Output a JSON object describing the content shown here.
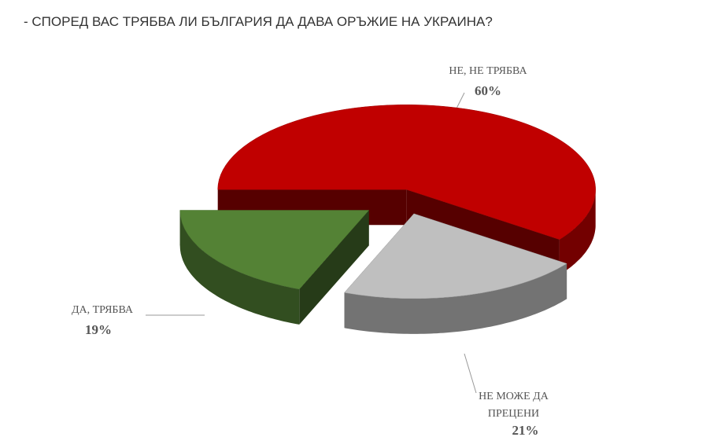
{
  "chart_data": {
    "type": "pie",
    "title": "- СПОРЕД ВАС ТРЯБВА ЛИ БЪЛГАРИЯ ДА ДАВА ОРЪЖИЕ НА УКРАИНА?",
    "categories": [
      "НЕ, НЕ ТРЯБВА",
      "НЕ МОЖЕ ДА ПРЕЦЕНИ",
      "ДА, ТРЯБВА"
    ],
    "values": [
      60,
      21,
      19
    ],
    "value_labels": [
      "60%",
      "21%",
      "19%"
    ],
    "colors": [
      "#c00000",
      "#bfbfbf",
      "#548235"
    ]
  }
}
